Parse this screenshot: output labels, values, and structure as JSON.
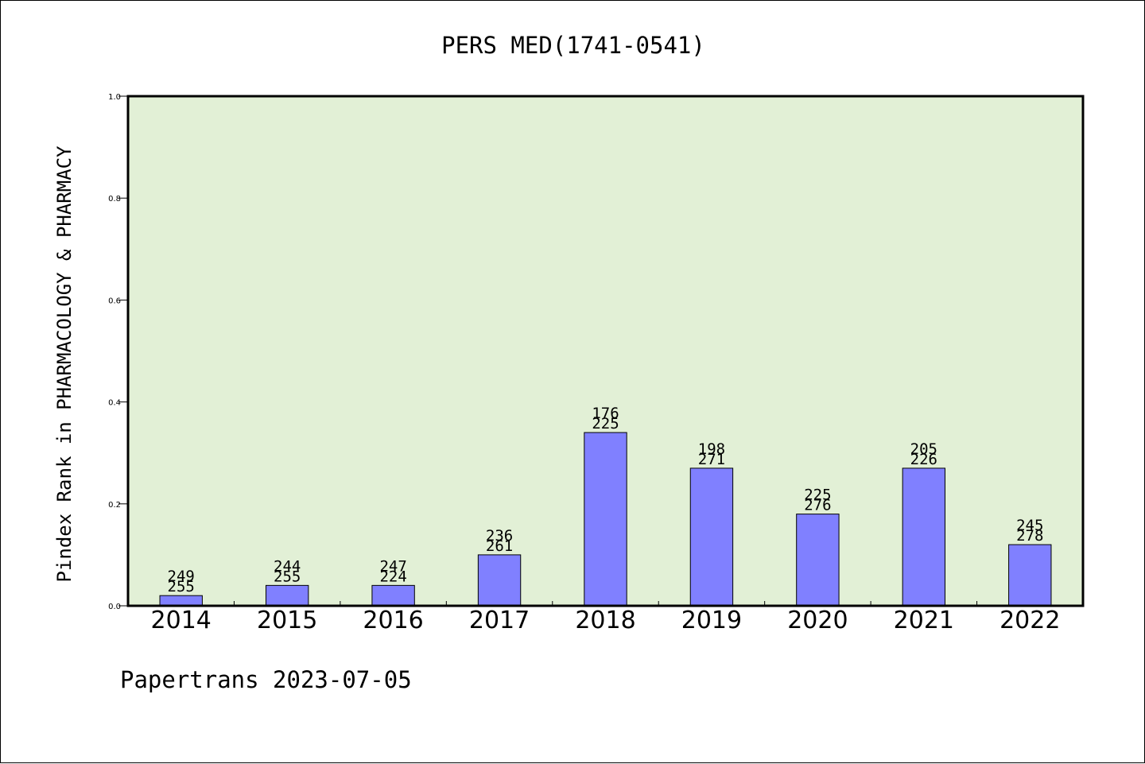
{
  "chart_data": {
    "type": "bar",
    "title": "PERS MED(1741-0541)",
    "ylabel": "Pindex Rank in PHARMACOLOGY & PHARMACY",
    "xlabel": "",
    "ylim": [
      0,
      1.0
    ],
    "yticks": [
      "0.0",
      "0.2",
      "0.4",
      "0.6",
      "0.8",
      "1.0"
    ],
    "categories": [
      "2014",
      "2015",
      "2016",
      "2017",
      "2018",
      "2019",
      "2020",
      "2021",
      "2022"
    ],
    "values": [
      0.02,
      0.04,
      0.04,
      0.1,
      0.34,
      0.27,
      0.18,
      0.27,
      0.12
    ],
    "label_top": [
      "249",
      "244",
      "247",
      "236",
      "176",
      "198",
      "225",
      "205",
      "245"
    ],
    "label_bottom": [
      "255",
      "255",
      "224",
      "261",
      "225",
      "271",
      "276",
      "226",
      "278"
    ],
    "grid": false,
    "colors": {
      "bar": "#8080ff",
      "plot_bg": "#e2f0d6",
      "axis": "#000000"
    }
  },
  "footer": {
    "text": "Papertrans 2023-07-05"
  }
}
